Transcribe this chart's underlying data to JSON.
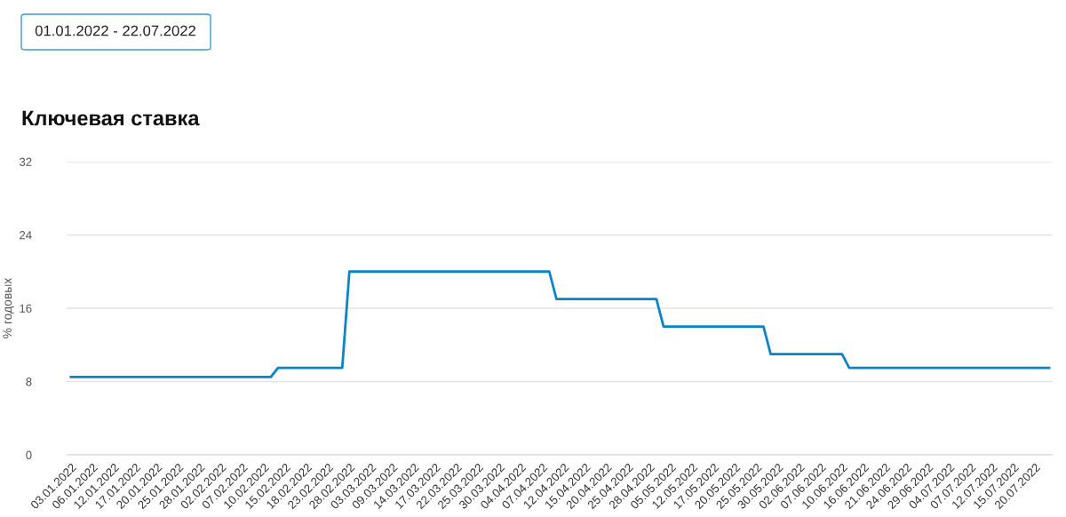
{
  "chart_data": {
    "type": "line",
    "title": "Ключевая ставка",
    "ylabel": "% годовых",
    "annotations": [
      "01.01.2022 - 22.07.2022"
    ],
    "categories": [
      "03.01.2022",
      null,
      null,
      "06.01.2022",
      null,
      null,
      "12.01.2022",
      null,
      null,
      "17.01.2022",
      null,
      null,
      "20.01.2022",
      null,
      null,
      "25.01.2022",
      null,
      null,
      "28.01.2022",
      null,
      null,
      "02.02.2022",
      null,
      null,
      "07.02.2022",
      null,
      null,
      "10.02.2022",
      null,
      null,
      "15.02.2022",
      null,
      null,
      "18.02.2022",
      null,
      null,
      "23.02.2022",
      null,
      null,
      "28.02.2022",
      null,
      null,
      "03.03.2022",
      null,
      null,
      "09.03.2022",
      null,
      null,
      "14.03.2022",
      null,
      null,
      "17.03.2022",
      null,
      null,
      "22.03.2022",
      null,
      null,
      "25.03.2022",
      null,
      null,
      "30.03.2022",
      null,
      null,
      "04.04.2022",
      null,
      null,
      "07.04.2022",
      null,
      null,
      "12.04.2022",
      null,
      null,
      "15.04.2022",
      null,
      null,
      "20.04.2022",
      null,
      null,
      "25.04.2022",
      null,
      null,
      "28.04.2022",
      null,
      null,
      "05.05.2022",
      null,
      null,
      "12.05.2022",
      null,
      null,
      "17.05.2022",
      null,
      null,
      "20.05.2022",
      null,
      null,
      "25.05.2022",
      null,
      null,
      "30.05.2022",
      null,
      null,
      "02.06.2022",
      null,
      null,
      "07.06.2022",
      null,
      null,
      "10.06.2022",
      null,
      null,
      "16.06.2022",
      null,
      null,
      "21.06.2022",
      null,
      null,
      "24.06.2022",
      null,
      null,
      "29.06.2022",
      null,
      null,
      "04.07.2022",
      null,
      null,
      "07.07.2022",
      null,
      null,
      "12.07.2022",
      null,
      null,
      "15.07.2022",
      null,
      null,
      "20.07.2022",
      null,
      null
    ],
    "series": [
      {
        "color": "#0a84c8",
        "values": [
          8.5,
          8.5,
          8.5,
          8.5,
          8.5,
          8.5,
          8.5,
          8.5,
          8.5,
          8.5,
          8.5,
          8.5,
          8.5,
          8.5,
          8.5,
          8.5,
          8.5,
          8.5,
          8.5,
          8.5,
          8.5,
          8.5,
          8.5,
          8.5,
          8.5,
          8.5,
          8.5,
          8.5,
          8.5,
          9.5,
          9.5,
          9.5,
          9.5,
          9.5,
          9.5,
          9.5,
          9.5,
          9.5,
          9.5,
          20,
          20,
          20,
          20,
          20,
          20,
          20,
          20,
          20,
          20,
          20,
          20,
          20,
          20,
          20,
          20,
          20,
          20,
          20,
          20,
          20,
          20,
          20,
          20,
          20,
          20,
          20,
          20,
          20,
          17,
          17,
          17,
          17,
          17,
          17,
          17,
          17,
          17,
          17,
          17,
          17,
          17,
          17,
          17,
          14,
          14,
          14,
          14,
          14,
          14,
          14,
          14,
          14,
          14,
          14,
          14,
          14,
          14,
          14,
          11,
          11,
          11,
          11,
          11,
          11,
          11,
          11,
          11,
          11,
          11,
          9.5,
          9.5,
          9.5,
          9.5,
          9.5,
          9.5,
          9.5,
          9.5,
          9.5,
          9.5,
          9.5,
          9.5,
          9.5,
          9.5,
          9.5,
          9.5,
          9.5,
          9.5,
          9.5,
          9.5,
          9.5,
          9.5,
          9.5,
          9.5,
          9.5,
          9.5,
          9.5,
          9.5,
          9.5
        ]
      }
    ],
    "ylim": [
      0,
      32
    ],
    "yticks": [
      0,
      8,
      16,
      24,
      32
    ],
    "grid": "y",
    "legend": false,
    "marker": "none",
    "line_style": "solid"
  }
}
